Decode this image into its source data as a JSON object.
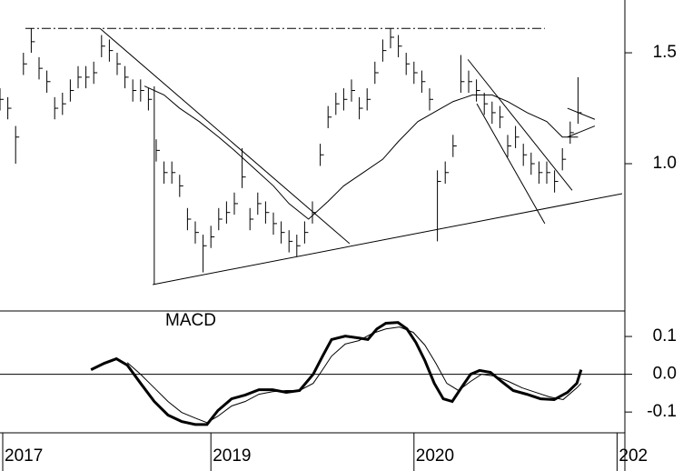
{
  "chart_data": [
    {
      "type": "ohlc",
      "color": "#000000",
      "xlim": [
        0,
        160
      ],
      "ylim": [
        0.336,
        1.738
      ],
      "yticks": [
        1.5,
        {
          "value": 1,
          "label": "1.0"
        }
      ],
      "x": [
        0,
        2,
        4,
        6,
        8,
        10,
        12,
        14,
        16,
        18,
        20,
        22,
        24,
        26,
        28,
        30,
        32,
        34,
        36,
        38,
        40,
        42,
        44,
        46,
        48,
        50,
        52,
        54,
        56,
        58,
        60,
        62,
        64,
        66,
        68,
        70,
        72,
        74,
        76,
        78,
        80,
        82,
        84,
        86,
        88,
        90,
        92,
        94,
        96,
        98,
        100,
        102,
        104,
        106,
        108,
        110,
        112,
        114,
        116,
        118,
        120,
        122,
        124,
        126,
        128,
        130,
        132,
        134,
        136,
        138,
        140,
        142,
        144,
        146,
        148
      ],
      "high": [
        1.34,
        1.3,
        1.17,
        1.5,
        1.61,
        1.48,
        1.42,
        1.3,
        1.32,
        1.38,
        1.44,
        1.44,
        1.46,
        1.58,
        1.56,
        1.5,
        1.44,
        1.38,
        1.38,
        1.34,
        1.11,
        1.01,
        1.01,
        0.95,
        0.8,
        0.74,
        0.68,
        0.72,
        0.8,
        0.83,
        0.87,
        1.07,
        0.8,
        0.87,
        0.83,
        0.78,
        0.74,
        0.7,
        0.68,
        0.74,
        0.83,
        1.09,
        1.26,
        1.32,
        1.34,
        1.38,
        1.3,
        1.34,
        1.46,
        1.56,
        1.61,
        1.58,
        1.5,
        1.46,
        1.42,
        1.34,
        0.97,
        1.01,
        1.13,
        1.49,
        1.42,
        1.38,
        1.32,
        1.28,
        1.26,
        1.13,
        1.17,
        1.09,
        1.05,
        1.01,
        1.01,
        0.97,
        1.07,
        1.19,
        1.39
      ],
      "low": [
        1.24,
        1.2,
        1.0,
        1.4,
        1.5,
        1.38,
        1.32,
        1.2,
        1.22,
        1.28,
        1.34,
        1.34,
        1.36,
        1.48,
        1.46,
        1.4,
        1.34,
        1.28,
        1.28,
        1.24,
        1.01,
        0.91,
        0.91,
        0.85,
        0.7,
        0.64,
        0.51,
        0.62,
        0.7,
        0.73,
        0.77,
        0.89,
        0.7,
        0.77,
        0.73,
        0.68,
        0.64,
        0.6,
        0.58,
        0.64,
        0.73,
        0.99,
        1.16,
        1.22,
        1.24,
        1.28,
        1.2,
        1.24,
        1.36,
        1.46,
        1.52,
        1.48,
        1.4,
        1.36,
        1.32,
        1.24,
        0.65,
        0.91,
        1.03,
        1.32,
        1.32,
        1.28,
        1.22,
        1.18,
        1.16,
        1.03,
        1.07,
        0.99,
        0.95,
        0.91,
        0.91,
        0.87,
        0.97,
        1.09,
        1.18
      ],
      "close": [
        1.29,
        1.25,
        1.12,
        1.45,
        1.55,
        1.43,
        1.37,
        1.25,
        1.27,
        1.33,
        1.39,
        1.39,
        1.41,
        1.53,
        1.51,
        1.45,
        1.39,
        1.33,
        1.33,
        1.29,
        1.06,
        0.96,
        0.96,
        0.9,
        0.75,
        0.69,
        0.63,
        0.67,
        0.75,
        0.78,
        0.82,
        0.94,
        0.75,
        0.82,
        0.78,
        0.73,
        0.69,
        0.65,
        0.63,
        0.69,
        0.78,
        1.04,
        1.21,
        1.27,
        1.29,
        1.33,
        1.25,
        1.29,
        1.41,
        1.51,
        1.57,
        1.53,
        1.45,
        1.41,
        1.37,
        1.29,
        0.92,
        0.96,
        1.08,
        1.37,
        1.37,
        1.33,
        1.27,
        1.23,
        1.21,
        1.08,
        1.12,
        1.04,
        1.0,
        0.96,
        0.96,
        0.92,
        1.02,
        1.14,
        1.23
      ],
      "moving_average": {
        "x": [
          37,
          42,
          46,
          51,
          56,
          60,
          65,
          70,
          74,
          79,
          84,
          88,
          93,
          98,
          102,
          107,
          112,
          116,
          121,
          126,
          130,
          135,
          140,
          144,
          148
        ],
        "values": [
          1.35,
          1.31,
          1.25,
          1.19,
          1.12,
          1.06,
          0.98,
          0.9,
          0.82,
          0.75,
          0.83,
          0.9,
          0.96,
          1.02,
          1.1,
          1.19,
          1.24,
          1.28,
          1.31,
          1.31,
          1.28,
          1.23,
          1.19,
          1.12,
          1.12
        ]
      },
      "trendlines": [
        {
          "style": "dash-dot",
          "x": [
            6.5,
            139.5
          ],
          "y": [
            1.61,
            1.61
          ]
        },
        {
          "style": "solid",
          "x": [
            25.6,
            89.5
          ],
          "y": [
            1.61,
            0.64
          ]
        },
        {
          "style": "solid",
          "x": [
            39.1,
            159.3
          ],
          "y": [
            0.455,
            0.865
          ]
        },
        {
          "style": "solid",
          "x": [
            39.5,
            39.5
          ],
          "y": [
            1.349,
            0.455
          ]
        },
        {
          "style": "solid",
          "x": [
            119.8,
            146.5
          ],
          "y": [
            1.47,
            0.88
          ]
        },
        {
          "style": "solid",
          "x": [
            122.1,
            139.5
          ],
          "y": [
            1.27,
            0.73
          ]
        },
        {
          "style": "solid",
          "x": [
            145.3,
            152.3
          ],
          "y": [
            1.25,
            1.2
          ]
        },
        {
          "style": "solid",
          "x": [
            145.3,
            152.3
          ],
          "y": [
            1.12,
            1.17
          ]
        }
      ]
    },
    {
      "type": "line",
      "title": "MACD",
      "xlim": [
        0,
        160
      ],
      "ylim": [
        -0.155,
        0.1675
      ],
      "xticks": [
        {
          "value": 0.7,
          "label": "2017"
        },
        {
          "value": 54,
          "label": "2019"
        },
        {
          "value": 106,
          "label": "2020"
        },
        {
          "value": 158,
          "label": "202"
        }
      ],
      "yticks": [
        0.1,
        {
          "value": 0,
          "label": "0.0"
        },
        -0.1
      ],
      "series": [
        {
          "width": 3,
          "x": [
            23.3,
            26.7,
            29.8,
            32.6,
            36.0,
            39.5,
            43.0,
            46.5,
            50.0,
            53.0,
            55.8,
            59.3,
            62.8,
            66.3,
            69.8,
            73.3,
            76.7,
            80.2,
            82.6,
            84.9,
            88.4,
            91.9,
            94.2,
            96.5,
            98.8,
            101.9,
            104.2,
            106.5,
            108.8,
            111.2,
            113.5,
            115.8,
            118.1,
            120.5,
            122.8,
            125.6,
            128.4,
            131.4,
            134.9,
            138.4,
            141.9,
            145.3,
            147.7,
            148.8
          ],
          "values": [
            0.012,
            0.029,
            0.041,
            0.024,
            -0.024,
            -0.072,
            -0.108,
            -0.125,
            -0.133,
            -0.133,
            -0.096,
            -0.065,
            -0.055,
            -0.041,
            -0.041,
            -0.048,
            -0.043,
            0,
            0.048,
            0.092,
            0.101,
            0.096,
            0.092,
            0.12,
            0.135,
            0.137,
            0.12,
            0.084,
            0.036,
            -0.024,
            -0.065,
            -0.072,
            -0.036,
            0,
            0.01,
            0.005,
            -0.019,
            -0.043,
            -0.053,
            -0.065,
            -0.067,
            -0.048,
            -0.024,
            0.012
          ]
        },
        {
          "width": 1,
          "x": [
            32.6,
            36.0,
            39.5,
            43.0,
            46.5,
            50.0,
            53.0,
            55.8,
            59.3,
            62.8,
            66.3,
            69.8,
            73.3,
            76.7,
            80.2,
            82.6,
            84.9,
            88.4,
            91.9,
            95.3,
            98.8,
            102.3,
            105.8,
            108.8,
            111.6,
            114.4,
            117.4,
            120.5,
            123.3,
            126.7,
            130.2,
            133.7,
            137.2,
            140.7,
            144.2,
            147.7,
            148.8
          ],
          "values": [
            0.031,
            0,
            -0.036,
            -0.072,
            -0.101,
            -0.116,
            -0.128,
            -0.111,
            -0.084,
            -0.072,
            -0.053,
            -0.046,
            -0.043,
            -0.043,
            -0.024,
            0.012,
            0.048,
            0.08,
            0.089,
            0.108,
            0.12,
            0.125,
            0.111,
            0.077,
            0.029,
            -0.024,
            -0.043,
            -0.019,
            0,
            -0.005,
            -0.019,
            -0.036,
            -0.048,
            -0.06,
            -0.067,
            -0.036,
            -0.024
          ]
        }
      ]
    }
  ]
}
